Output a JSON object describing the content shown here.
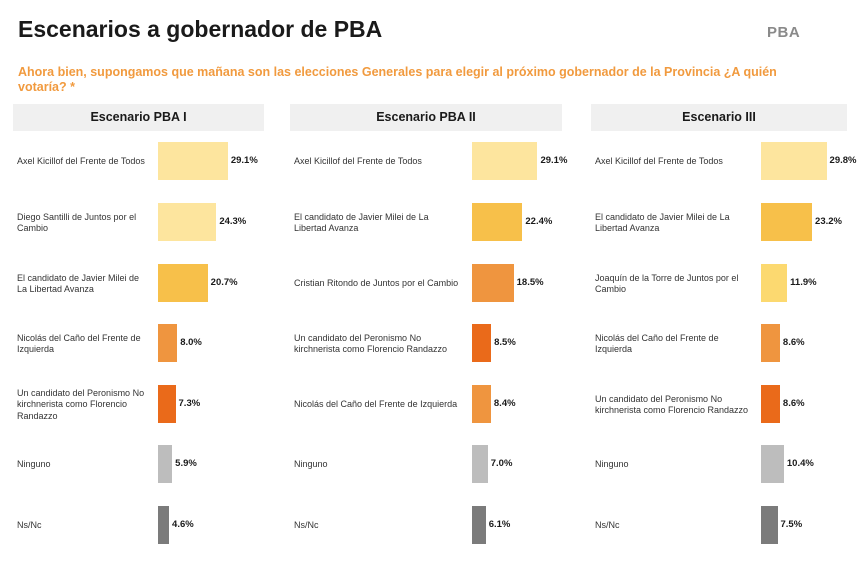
{
  "header": {
    "title": "Escenarios a gobernador de PBA",
    "region": "PBA",
    "question": "Ahora bien, supongamos que mañana son las elecciones Generales para elegir al próximo gobernador de la Provincia ¿A quién votaría? *"
  },
  "colors": {
    "light": "#fde59e",
    "gold": "#f7c04a",
    "yellow": "#fcd970",
    "orange": "#ef953f",
    "red": "#ea6a1a",
    "lightgray": "#bdbdbd",
    "darkgray": "#7b7b7b"
  },
  "chart_data": [
    {
      "type": "bar",
      "title": "Escenario PBA I",
      "categories": [
        "Axel Kicillof del Frente de Todos",
        "Diego Santilli de Juntos por el Cambio",
        "El candidato de Javier Milei de La Libertad Avanza",
        "Nicolás del Caño del Frente de Izquierda",
        "Un candidato del Peronismo No kirchnerista como Florencio Randazzo",
        "Ninguno",
        "Ns/Nc"
      ],
      "values": [
        29.1,
        24.3,
        20.7,
        8.0,
        7.3,
        5.9,
        4.6
      ],
      "labels": [
        "29.1%",
        "24.3%",
        "20.7%",
        "8.0%",
        "7.3%",
        "5.9%",
        "4.6%"
      ],
      "colors": [
        "light",
        "light",
        "gold",
        "orange",
        "red",
        "lightgray",
        "darkgray"
      ],
      "xlim": [
        0,
        30
      ]
    },
    {
      "type": "bar",
      "title": "Escenario PBA II",
      "categories": [
        "Axel Kicillof del Frente de Todos",
        "El candidato de Javier Milei de La Libertad Avanza",
        "Cristian Ritondo de Juntos por el Cambio",
        "Un candidato del Peronismo No kirchnerista como Florencio Randazzo",
        "Nicolás del Caño del Frente de Izquierda",
        "Ninguno",
        "Ns/Nc"
      ],
      "values": [
        29.1,
        22.4,
        18.5,
        8.5,
        8.4,
        7.0,
        6.1
      ],
      "labels": [
        "29.1%",
        "22.4%",
        "18.5%",
        "8.5%",
        "8.4%",
        "7.0%",
        "6.1%"
      ],
      "colors": [
        "light",
        "gold",
        "orange",
        "red",
        "orange",
        "lightgray",
        "darkgray"
      ],
      "xlim": [
        0,
        30
      ]
    },
    {
      "type": "bar",
      "title": "Escenario III",
      "categories": [
        "Axel Kicillof del Frente de Todos",
        "El candidato de Javier Milei de La Libertad Avanza",
        "Joaquín de la Torre de Juntos por el Cambio",
        "Nicolás del Caño del Frente de Izquierda",
        "Un candidato del Peronismo No kirchnerista como Florencio Randazzo",
        "Ninguno",
        "Ns/Nc"
      ],
      "values": [
        29.8,
        23.2,
        11.9,
        8.6,
        8.6,
        10.4,
        7.5
      ],
      "labels": [
        "29.8%",
        "23.2%",
        "11.9%",
        "8.6%",
        "8.6%",
        "10.4%",
        "7.5%"
      ],
      "colors": [
        "light",
        "gold",
        "yellow",
        "orange",
        "red",
        "lightgray",
        "darkgray"
      ],
      "xlim": [
        0,
        30
      ]
    }
  ]
}
